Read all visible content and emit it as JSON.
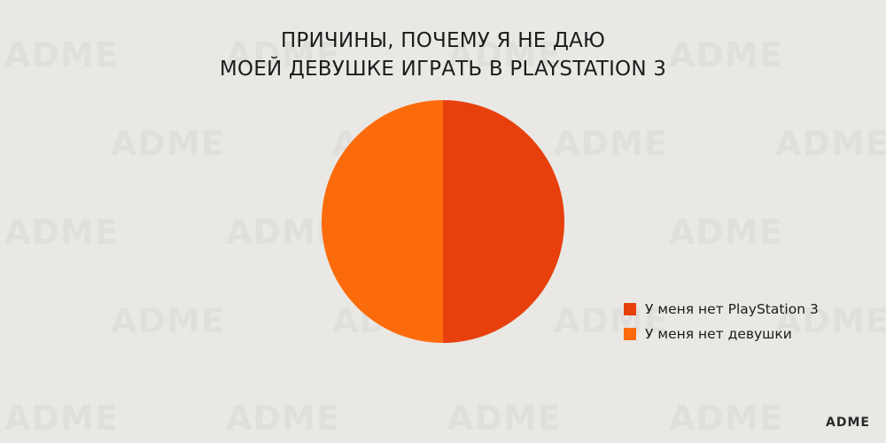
{
  "chart_data": {
    "type": "pie",
    "title_lines": [
      "ПРИЧИНЫ, ПОЧЕМУ Я НЕ ДАЮ",
      "МОЕЙ ДЕВУШКЕ ИГРАТЬ В PLAYSTATION 3"
    ],
    "slices": [
      {
        "label": "У меня нет PlayStation 3",
        "value": 50,
        "color": "#e8400d"
      },
      {
        "label": "У меня нет девушки",
        "value": 50,
        "color": "#fc6b0b"
      }
    ],
    "start_angle_deg": 0,
    "direction": "clockwise",
    "legend_position": "bottom-right"
  },
  "branding": {
    "logo_text": "ADME",
    "watermark_text": "ADME"
  }
}
